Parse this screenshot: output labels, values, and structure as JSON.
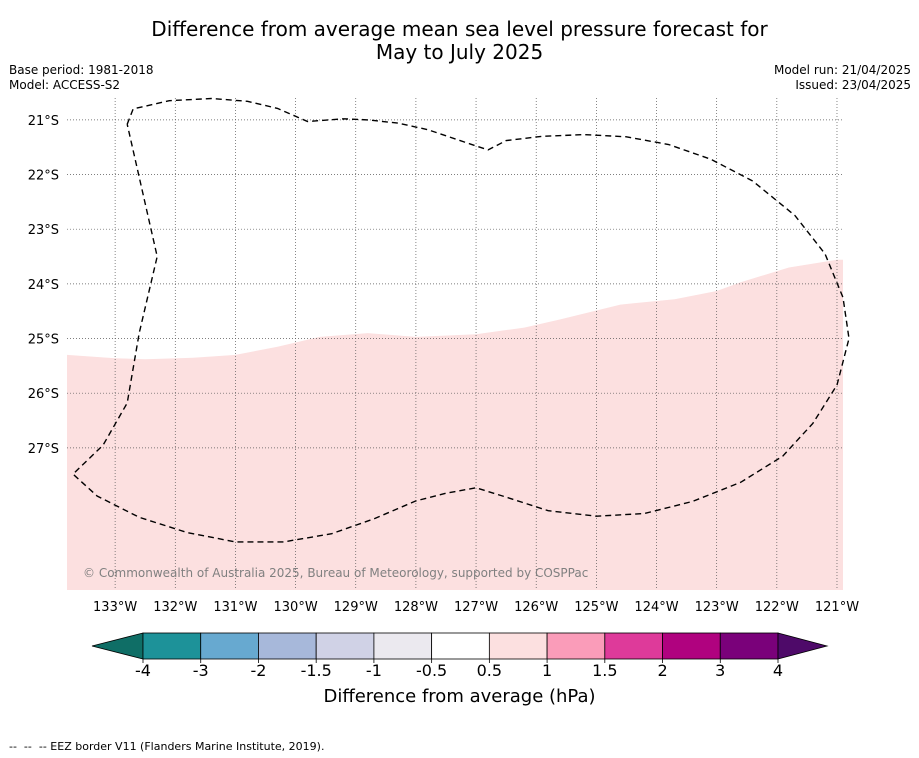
{
  "title_line1": "Difference from average mean sea level pressure forecast for",
  "title_line2": "May to July 2025",
  "base_period": "Base period: 1981-2018",
  "model": "Model: ACCESS-S2",
  "model_run": "Model run: 21/04/2025",
  "issued": "Issued: 23/04/2025",
  "copyright": "© Commonwealth of Australia 2025, Bureau of Meteorology, supported by COSPPac",
  "footer_note": "--  --  -- EEZ border V11 (Flanders Marine Institute, 2019).",
  "map": {
    "lon_range": [
      -133.8,
      -120.9
    ],
    "lat_range": [
      -29.6,
      -20.6
    ],
    "lon_ticks": [
      {
        "value": -133,
        "label": "133°W"
      },
      {
        "value": -132,
        "label": "132°W"
      },
      {
        "value": -131,
        "label": "131°W"
      },
      {
        "value": -130,
        "label": "130°W"
      },
      {
        "value": -129,
        "label": "129°W"
      },
      {
        "value": -128,
        "label": "128°W"
      },
      {
        "value": -127,
        "label": "127°W"
      },
      {
        "value": -126,
        "label": "126°W"
      },
      {
        "value": -125,
        "label": "125°W"
      },
      {
        "value": -124,
        "label": "124°W"
      },
      {
        "value": -123,
        "label": "123°W"
      },
      {
        "value": -122,
        "label": "122°W"
      },
      {
        "value": -121,
        "label": "121°W"
      }
    ],
    "lat_ticks": [
      {
        "value": -21,
        "label": "21°S"
      },
      {
        "value": -22,
        "label": "22°S"
      },
      {
        "value": -23,
        "label": "23°S"
      },
      {
        "value": -24,
        "label": "24°S"
      },
      {
        "value": -25,
        "label": "25°S"
      },
      {
        "value": -26,
        "label": "26°S"
      },
      {
        "value": -27,
        "label": "27°S"
      }
    ],
    "anomaly_region": {
      "category": "0.5 to 1",
      "color": "#fce0e0",
      "northern_boundary": [
        [
          -133.8,
          -25.3
        ],
        [
          -133.0,
          -25.36
        ],
        [
          -132.5,
          -25.38
        ],
        [
          -131.7,
          -25.35
        ],
        [
          -131.0,
          -25.3
        ],
        [
          -130.3,
          -25.15
        ],
        [
          -129.6,
          -24.97
        ],
        [
          -128.8,
          -24.9
        ],
        [
          -128.0,
          -24.97
        ],
        [
          -127.0,
          -24.92
        ],
        [
          -126.2,
          -24.8
        ],
        [
          -125.6,
          -24.65
        ],
        [
          -124.6,
          -24.38
        ],
        [
          -123.7,
          -24.28
        ],
        [
          -123.0,
          -24.13
        ],
        [
          -122.6,
          -23.97
        ],
        [
          -121.8,
          -23.7
        ],
        [
          -121.0,
          -23.56
        ],
        [
          -120.9,
          -23.56
        ]
      ]
    },
    "eez_border": [
      [
        -132.8,
        -21.08
      ],
      [
        -132.7,
        -20.8
      ],
      [
        -132.1,
        -20.65
      ],
      [
        -131.4,
        -20.61
      ],
      [
        -130.8,
        -20.66
      ],
      [
        -130.3,
        -20.79
      ],
      [
        -129.8,
        -21.03
      ],
      [
        -129.2,
        -20.98
      ],
      [
        -128.8,
        -21.0
      ],
      [
        -128.3,
        -21.06
      ],
      [
        -127.8,
        -21.18
      ],
      [
        -127.1,
        -21.44
      ],
      [
        -126.8,
        -21.55
      ],
      [
        -126.5,
        -21.38
      ],
      [
        -125.9,
        -21.3
      ],
      [
        -125.2,
        -21.27
      ],
      [
        -124.5,
        -21.31
      ],
      [
        -123.8,
        -21.45
      ],
      [
        -123.1,
        -21.72
      ],
      [
        -122.4,
        -22.12
      ],
      [
        -121.7,
        -22.75
      ],
      [
        -121.2,
        -23.45
      ],
      [
        -120.9,
        -24.25
      ],
      [
        -120.8,
        -25.0
      ],
      [
        -121.0,
        -25.85
      ],
      [
        -121.4,
        -26.55
      ],
      [
        -121.9,
        -27.15
      ],
      [
        -122.6,
        -27.63
      ],
      [
        -123.4,
        -27.98
      ],
      [
        -124.2,
        -28.2
      ],
      [
        -125.0,
        -28.25
      ],
      [
        -125.8,
        -28.15
      ],
      [
        -126.5,
        -27.9
      ],
      [
        -127.0,
        -27.73
      ],
      [
        -127.5,
        -27.83
      ],
      [
        -128.0,
        -27.97
      ],
      [
        -128.7,
        -28.3
      ],
      [
        -129.4,
        -28.57
      ],
      [
        -130.2,
        -28.72
      ],
      [
        -131.0,
        -28.72
      ],
      [
        -131.8,
        -28.55
      ],
      [
        -132.6,
        -28.27
      ],
      [
        -133.3,
        -27.88
      ],
      [
        -133.7,
        -27.48
      ],
      [
        -133.2,
        -26.95
      ],
      [
        -132.8,
        -26.18
      ],
      [
        -132.6,
        -24.9
      ],
      [
        -132.3,
        -23.5
      ],
      [
        -132.8,
        -21.08
      ]
    ]
  },
  "colorbar": {
    "label": "Difference from average (hPa)",
    "tick_labels": [
      "-4",
      "-3",
      "-2",
      "-1.5",
      "-1",
      "-0.5",
      "0.5",
      "1",
      "1.5",
      "2",
      "3",
      "4"
    ],
    "low_extension_color": "#0f6e66",
    "high_extension_color": "#4e0a69",
    "bins": [
      {
        "color": "#1d9299"
      },
      {
        "color": "#67a9d0"
      },
      {
        "color": "#a7b8da"
      },
      {
        "color": "#d0d2e6"
      },
      {
        "color": "#ebe9ef"
      },
      {
        "color": "#ffffff"
      },
      {
        "color": "#fce0e0"
      },
      {
        "color": "#fa9cb9"
      },
      {
        "color": "#de3a9a"
      },
      {
        "color": "#b0027f"
      },
      {
        "color": "#7a017a"
      }
    ]
  }
}
